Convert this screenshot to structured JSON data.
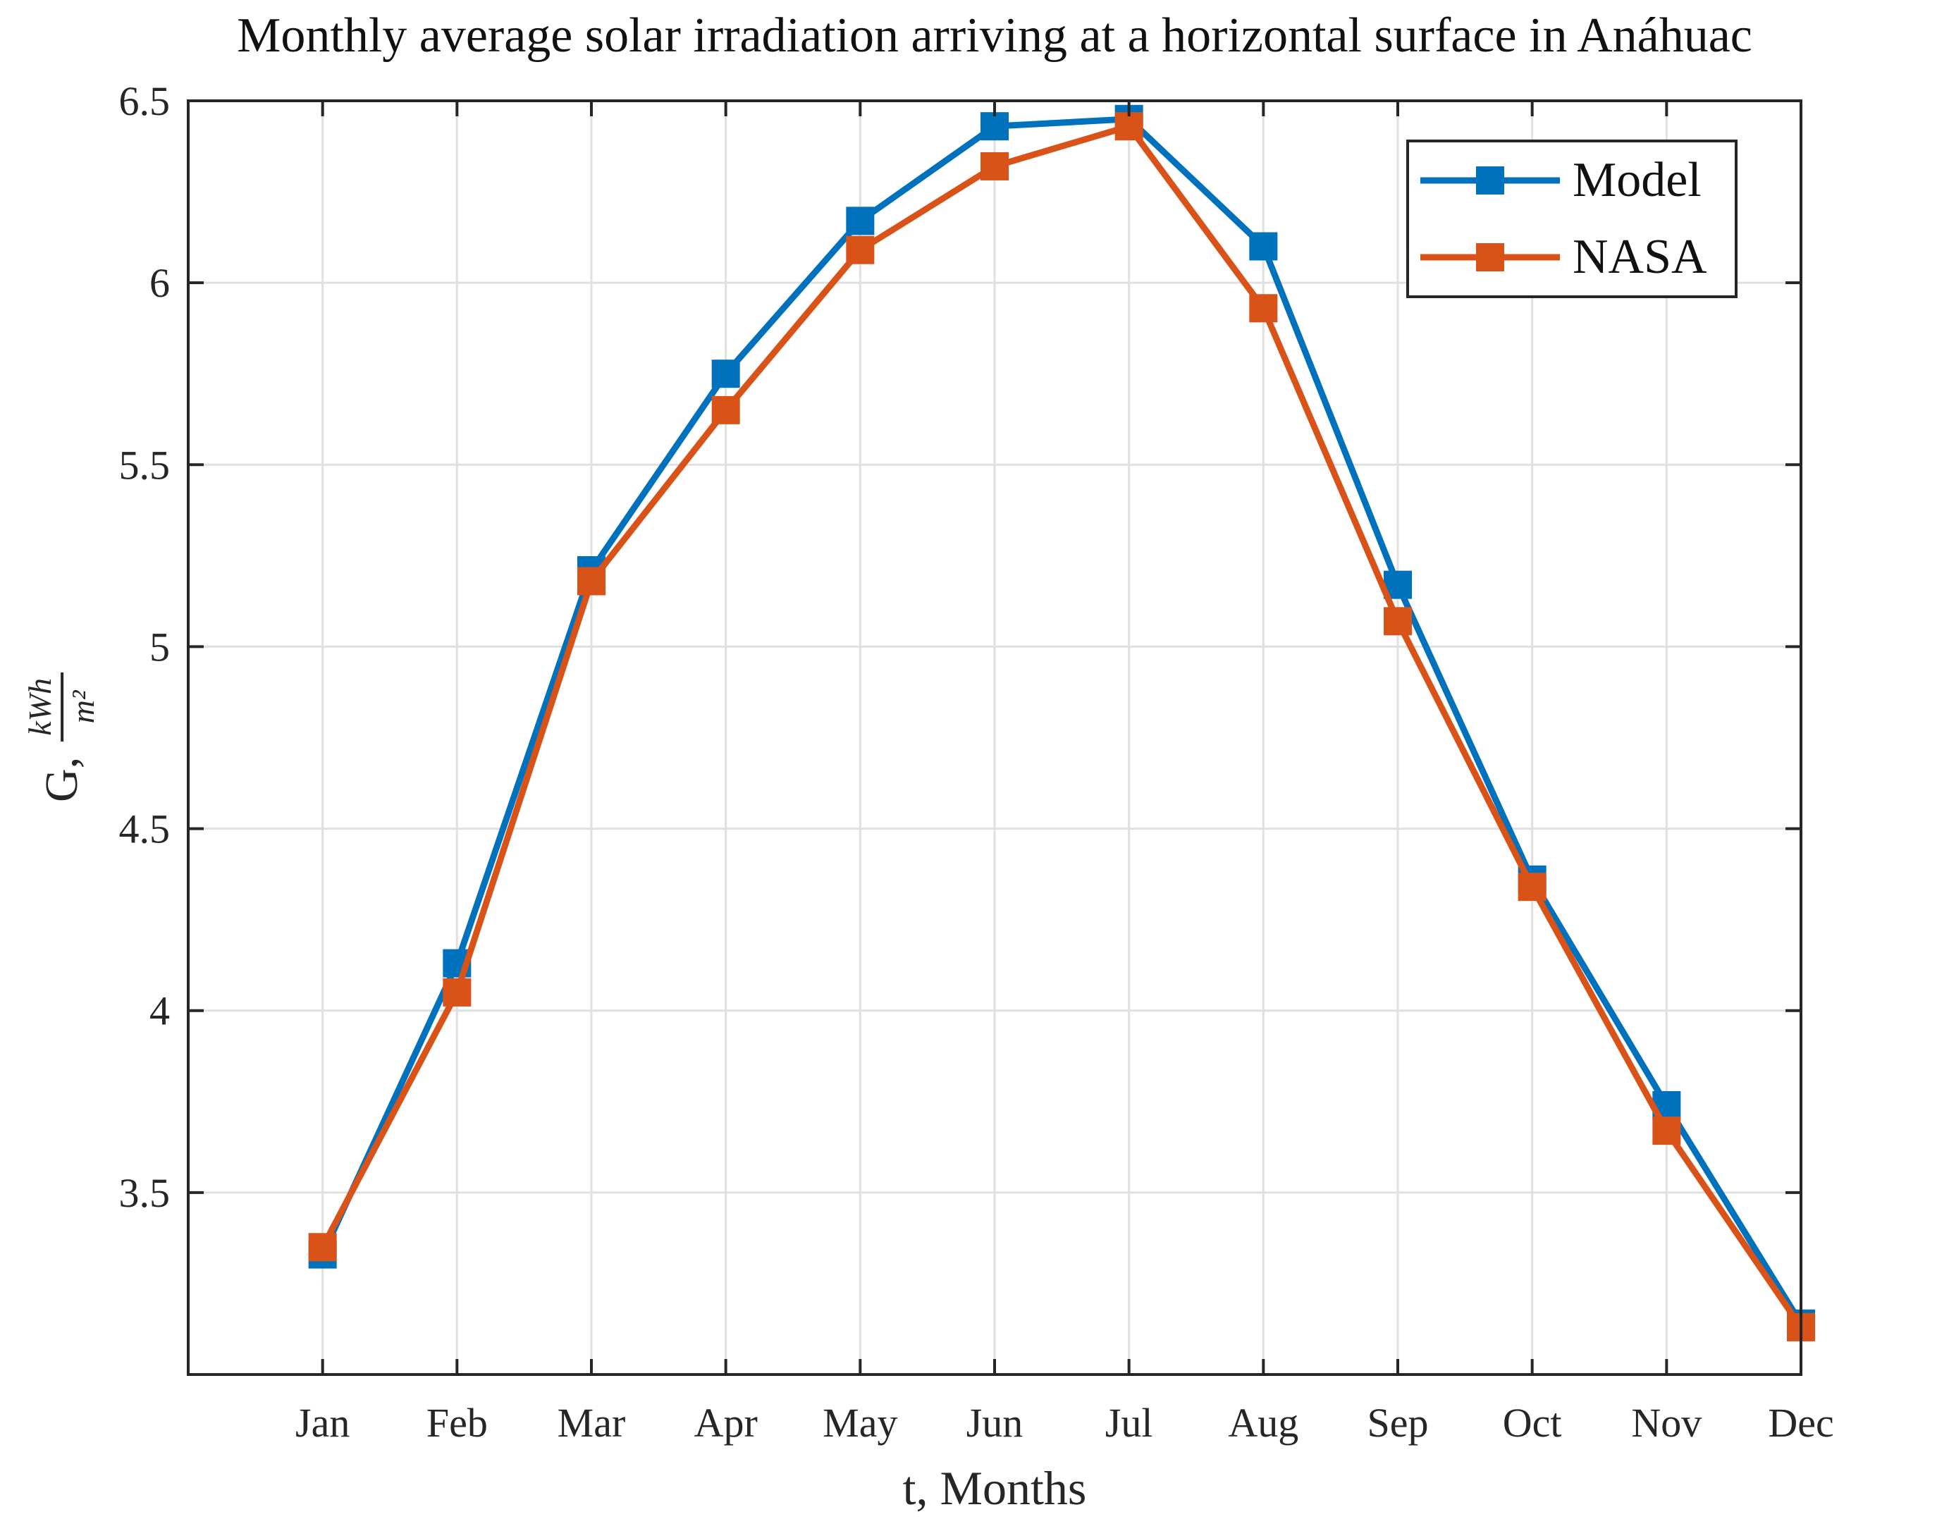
{
  "chart_data": {
    "type": "line",
    "title": "Monthly average solar irradiation arriving at a horizontal surface in Anáhuac",
    "xlabel": "t, Months",
    "ylabel": "G, kWh/m²",
    "ylabel_parts": {
      "prefix": "G,",
      "numerator": "kWh",
      "denominator": "m²"
    },
    "categories": [
      "Jan",
      "Feb",
      "Mar",
      "Apr",
      "May",
      "Jun",
      "Jul",
      "Aug",
      "Sep",
      "Oct",
      "Nov",
      "Dec"
    ],
    "x": [
      1,
      2,
      3,
      4,
      5,
      6,
      7,
      8,
      9,
      10,
      11,
      12
    ],
    "series": [
      {
        "name": "Model",
        "color": "#0072BD",
        "marker": "square",
        "values": [
          3.33,
          4.13,
          5.21,
          5.75,
          6.17,
          6.43,
          6.45,
          6.1,
          5.17,
          4.36,
          3.74,
          3.14
        ]
      },
      {
        "name": "NASA",
        "color": "#D95319",
        "marker": "square",
        "values": [
          3.35,
          4.05,
          5.18,
          5.65,
          6.09,
          6.32,
          6.43,
          5.93,
          5.07,
          4.34,
          3.67,
          3.13
        ]
      }
    ],
    "xlim": [
      0,
      12
    ],
    "ylim": [
      3.0,
      6.5
    ],
    "yticks": [
      3.5,
      4,
      4.5,
      5,
      5.5,
      6,
      6.5
    ],
    "ytick_labels": [
      "3.5",
      "4",
      "4.5",
      "5",
      "5.5",
      "6",
      "6.5"
    ],
    "grid": true,
    "legend": {
      "position": "upper-right",
      "entries": [
        "Model",
        "NASA"
      ]
    },
    "axis_color": "#262626",
    "grid_color": "#E0E0E0",
    "tick_label_color": "#262626",
    "background": "#FFFFFF"
  }
}
